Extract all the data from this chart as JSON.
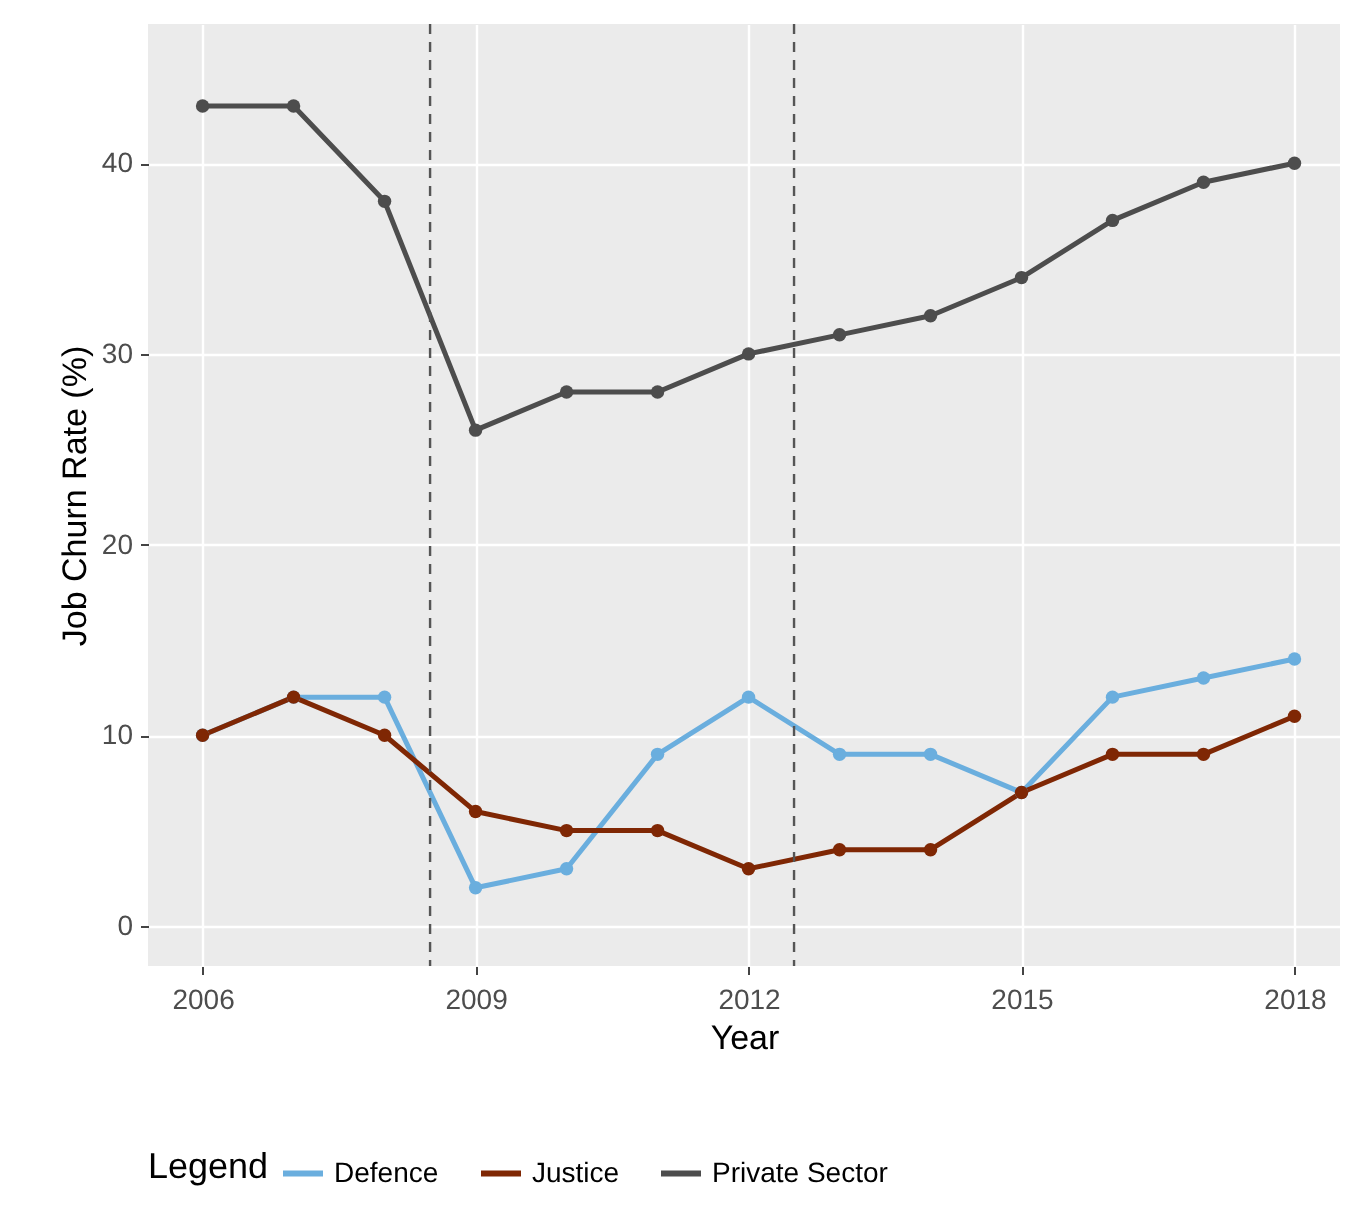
{
  "chart_data": {
    "type": "line",
    "xlabel": "Year",
    "ylabel": "Job Churn Rate (%)",
    "legend_title": "Legend",
    "x": [
      2006,
      2007,
      2008,
      2009,
      2010,
      2011,
      2012,
      2013,
      2014,
      2015,
      2016,
      2017,
      2018
    ],
    "series": [
      {
        "name": "Defence",
        "color": "#6aaede",
        "values": [
          10,
          12,
          12,
          2,
          3,
          9,
          12,
          9,
          9,
          7,
          12,
          13,
          14
        ]
      },
      {
        "name": "Justice",
        "color": "#7f2704",
        "values": [
          10,
          12,
          10,
          6,
          5,
          5,
          3,
          4,
          4,
          7,
          9,
          9,
          11
        ]
      },
      {
        "name": "Private Sector",
        "color": "#4d4d4d",
        "values": [
          43,
          43,
          38,
          26,
          28,
          28,
          30,
          31,
          32,
          34,
          37,
          39,
          40
        ]
      }
    ],
    "xlim": [
      2005.4,
      2018.5
    ],
    "xticks": [
      2006,
      2009,
      2012,
      2015,
      2018
    ],
    "ylim": [
      -2.1,
      47.3
    ],
    "yticks": [
      0,
      10,
      20,
      30,
      40
    ],
    "ref_lines": [
      {
        "axis": "x",
        "value": 2008.5,
        "color": "#555555",
        "line_style": "dashed"
      },
      {
        "axis": "x",
        "value": 2012.5,
        "color": "#555555",
        "line_style": "dashed"
      }
    ],
    "grid": true,
    "legend": "bottom",
    "marker": "circle",
    "line_style": "solid"
  }
}
